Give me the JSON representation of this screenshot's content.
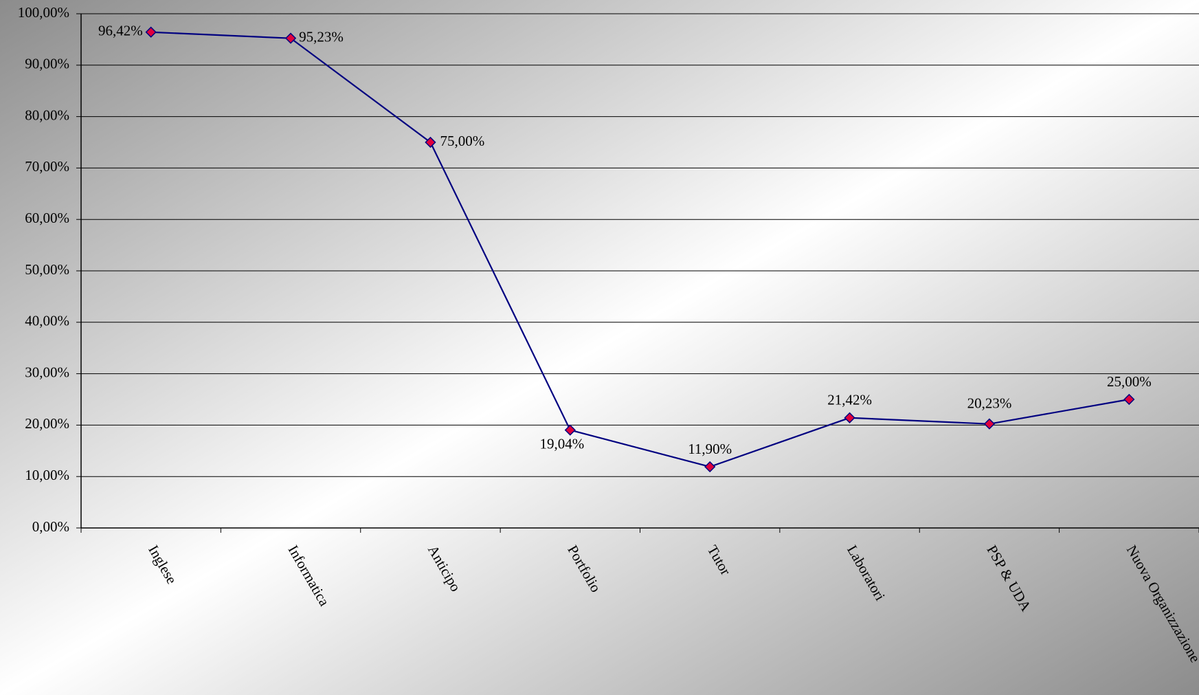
{
  "chart_data": {
    "type": "line",
    "categories": [
      "Inglese",
      "Informatica",
      "Anticipo",
      "Portfolio",
      "Tutor",
      "Laboratori",
      "PSP & UDA",
      "Nuova Organizzazione"
    ],
    "series": [
      {
        "color": "#000080",
        "marker_color": "#e0003c",
        "values": [
          96.42,
          95.23,
          75,
          19.04,
          11.9,
          21.42,
          20.23,
          25
        ],
        "value_labels": [
          "96,42%",
          "95,23%",
          "75,00%",
          "19,04%",
          "11,90%",
          "21,42%",
          "20,23%",
          "25,00%"
        ]
      }
    ],
    "ylim": [
      0,
      100
    ],
    "yticks": [
      {
        "value": 0,
        "label": "0,00%"
      },
      {
        "value": 10,
        "label": "10,00%"
      },
      {
        "value": 20,
        "label": "20,00%"
      },
      {
        "value": 30,
        "label": "30,00%"
      },
      {
        "value": 40,
        "label": "40,00%"
      },
      {
        "value": 50,
        "label": "50,00%"
      },
      {
        "value": 60,
        "label": "60,00%"
      },
      {
        "value": 70,
        "label": "70,00%"
      },
      {
        "value": 80,
        "label": "80,00%"
      },
      {
        "value": 90,
        "label": "90,00%"
      },
      {
        "value": 100,
        "label": "100,00%"
      }
    ],
    "grid": true
  }
}
